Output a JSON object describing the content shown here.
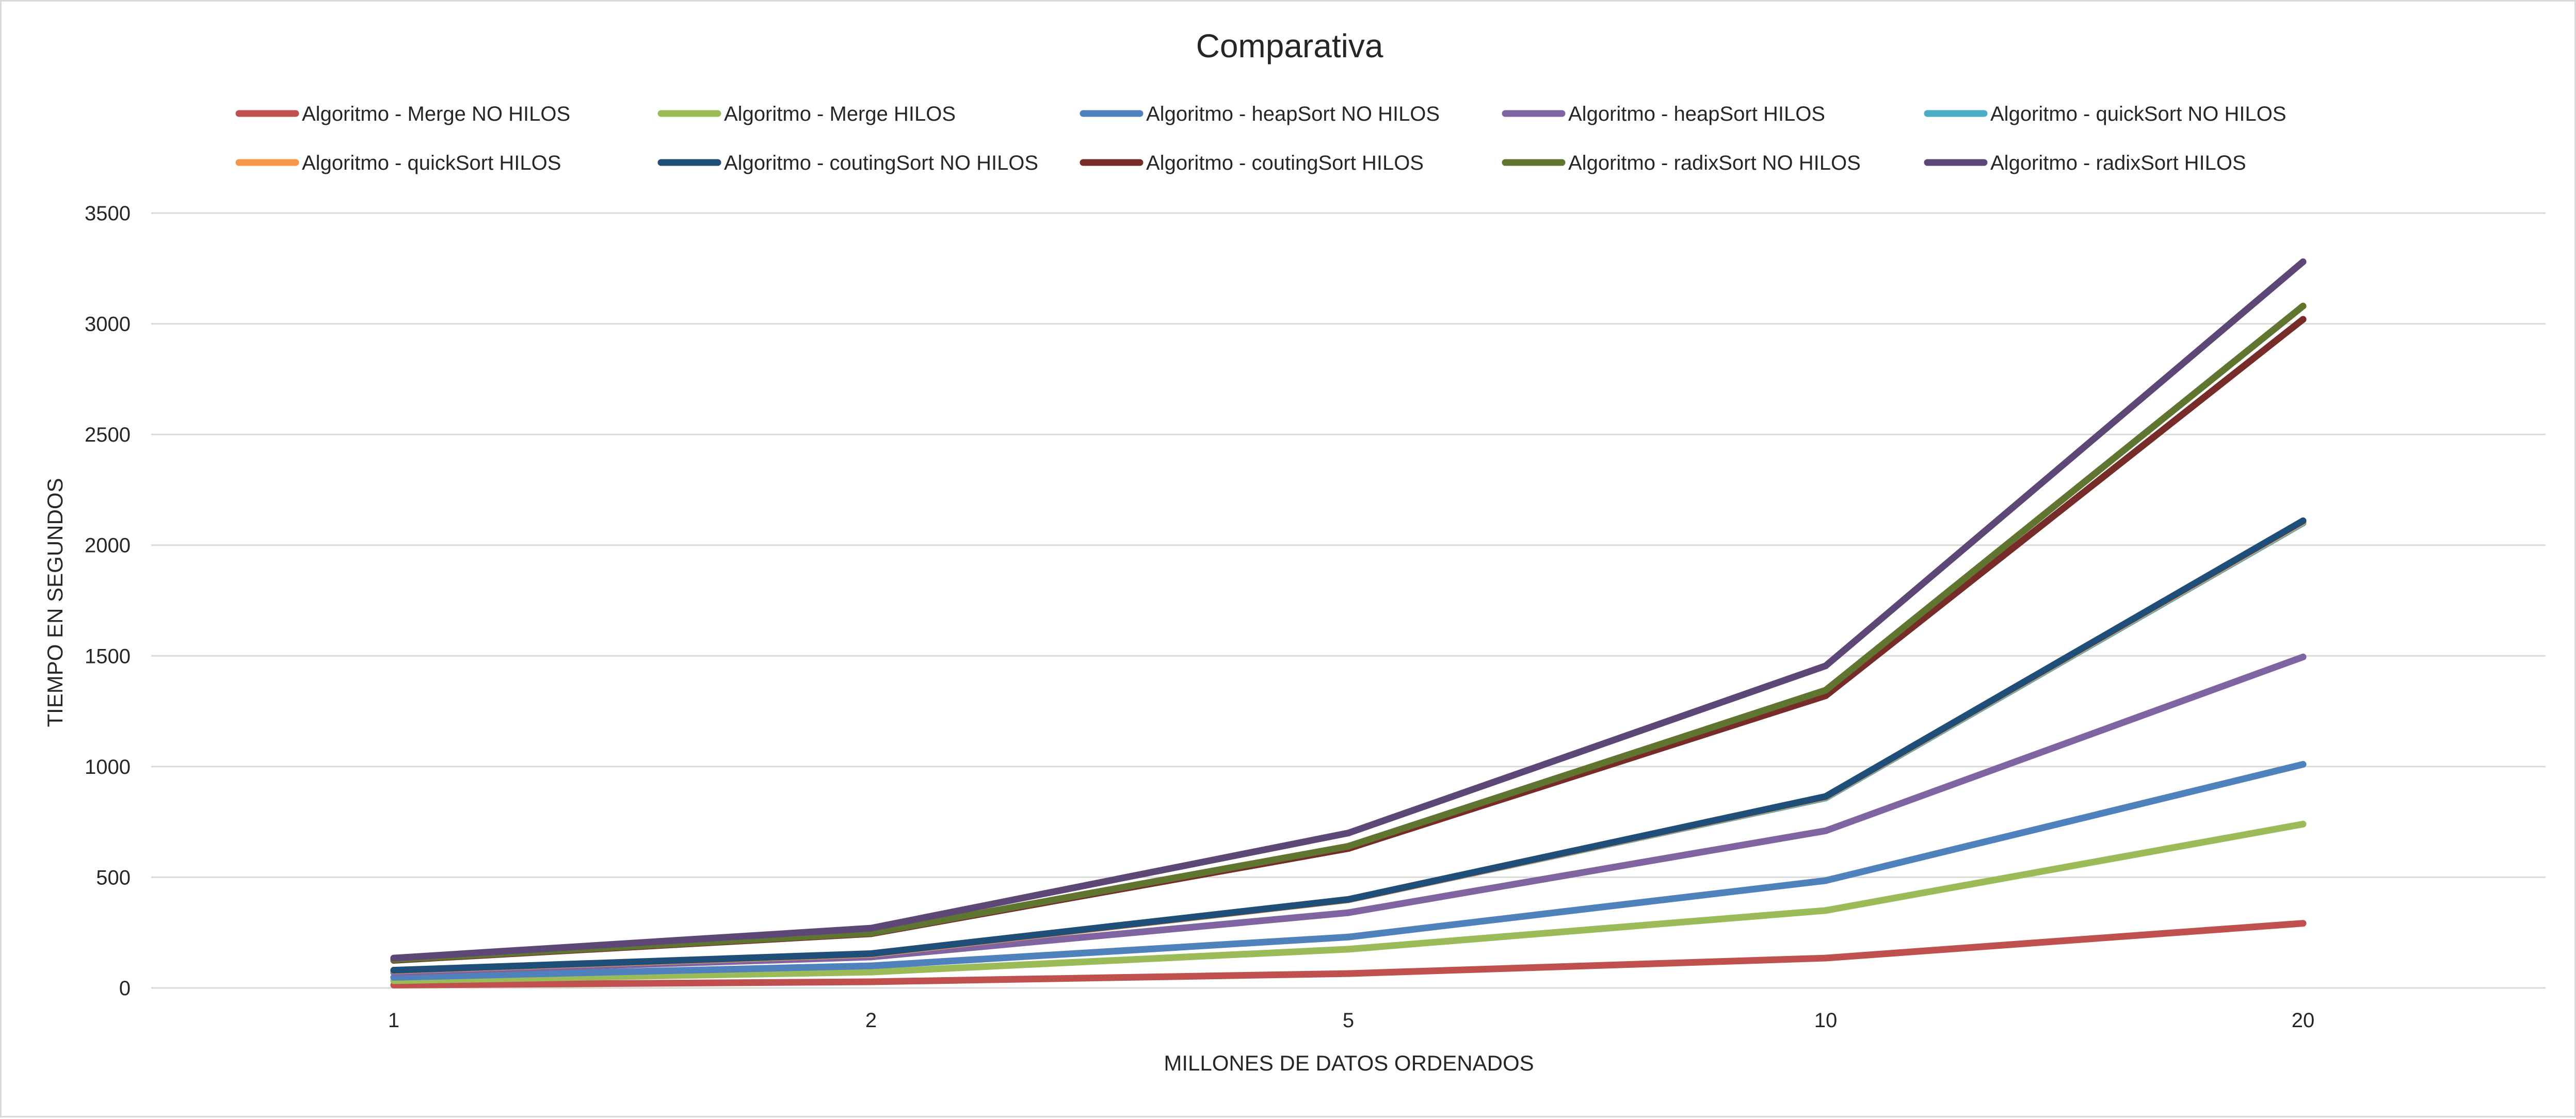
{
  "chart_data": {
    "type": "line",
    "title": "Comparativa",
    "xlabel": "MILLONES DE DATOS ORDENADOS",
    "ylabel": "TIEMPO EN SEGUNDOS",
    "categories": [
      "1",
      "2",
      "5",
      "10",
      "20"
    ],
    "ylim": [
      0,
      3500
    ],
    "yticks": [
      0,
      500,
      1000,
      1500,
      2000,
      2500,
      3000,
      3500
    ],
    "grid": true,
    "legend_position": "top",
    "series": [
      {
        "name": "Algoritmo - Merge NO HILOS",
        "color": "#c0504d",
        "values": [
          13,
          28,
          65,
          135,
          292
        ]
      },
      {
        "name": "Algoritmo - Merge  HILOS",
        "color": "#9bbb59",
        "values": [
          33,
          72,
          175,
          350,
          740
        ]
      },
      {
        "name": "Algoritmo - heapSort NO HILOS",
        "color": "#4f81bd",
        "values": [
          48,
          100,
          230,
          485,
          1010
        ]
      },
      {
        "name": "Algoritmo - heapSort HILOS",
        "color": "#8064a2",
        "values": [
          70,
          140,
          340,
          710,
          1495
        ]
      },
      {
        "name": "Algoritmo - quickSort NO HILOS",
        "color": "#4bacc6",
        "values": [
          78,
          152,
          398,
          858,
          2100
        ]
      },
      {
        "name": "Algoritmo - quickSort HILOS",
        "color": "#f79646",
        "values": [
          78,
          152,
          398,
          862,
          2105
        ]
      },
      {
        "name": "Algoritmo - coutingSort NO HILOS",
        "color": "#1f4e79",
        "values": [
          80,
          155,
          400,
          865,
          2110
        ]
      },
      {
        "name": "Algoritmo - coutingSort HILOS",
        "color": "#772c2a",
        "values": [
          125,
          245,
          630,
          1320,
          3020
        ]
      },
      {
        "name": "Algoritmo - radixSort NO HILOS",
        "color": "#5f7530",
        "values": [
          128,
          248,
          640,
          1345,
          3080
        ]
      },
      {
        "name": "Algoritmo - radixSort HILOS",
        "color": "#5c4776",
        "values": [
          135,
          270,
          700,
          1455,
          3280
        ]
      }
    ]
  }
}
